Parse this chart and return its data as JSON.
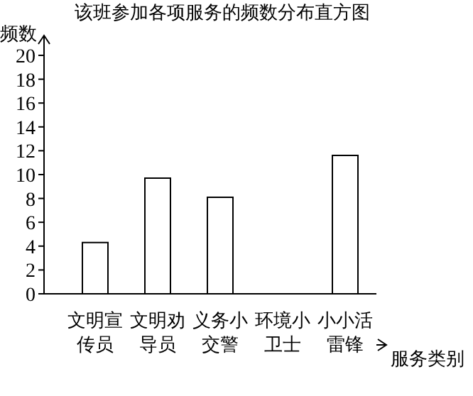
{
  "chart_data": {
    "type": "bar",
    "title": "该班参加各项服务的频数分布直方图",
    "xlabel": "服务类别",
    "ylabel": "频数",
    "categories": [
      "文明宣传员",
      "文明劝导员",
      "义务小交警",
      "环境小卫士",
      "小小活雷锋"
    ],
    "values": [
      4.3,
      9.7,
      8.1,
      0,
      11.6
    ],
    "color": "#ffffff",
    "ylim": [
      0,
      20
    ],
    "yticks": [
      0,
      2,
      4,
      6,
      8,
      10,
      12,
      14,
      16,
      18,
      20
    ],
    "grid": false,
    "legend": false
  }
}
